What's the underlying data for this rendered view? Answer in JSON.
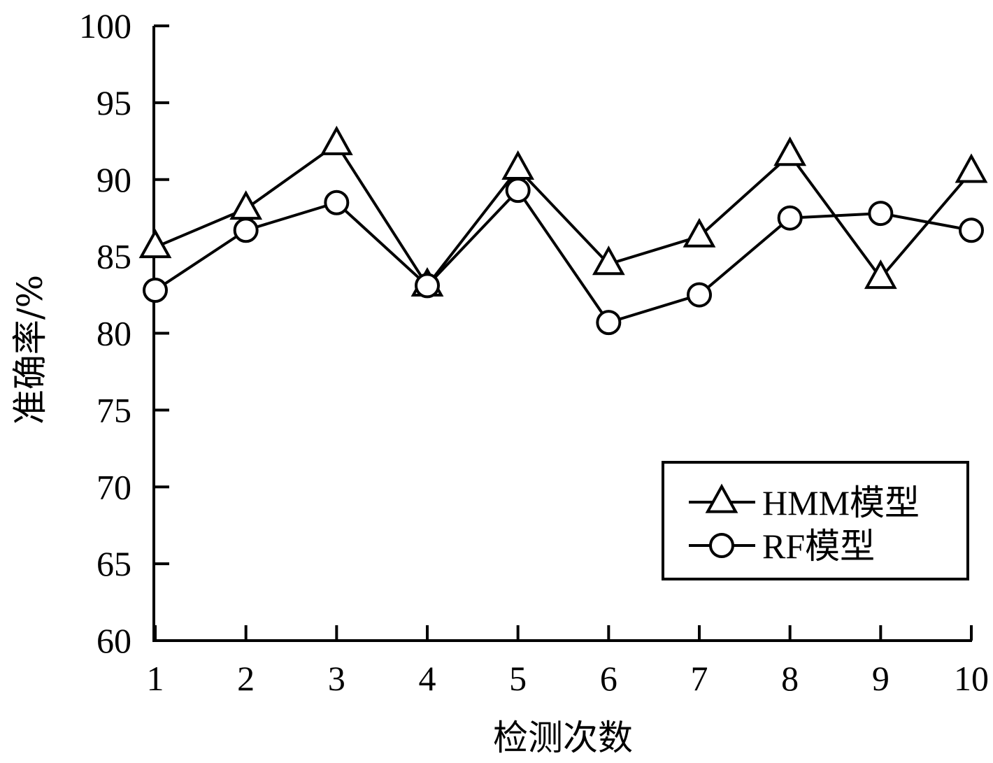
{
  "chart_data": {
    "type": "line",
    "title": "",
    "xlabel": "检测次数",
    "ylabel": "准确率/%",
    "categories": [
      "1",
      "2",
      "3",
      "4",
      "5",
      "6",
      "7",
      "8",
      "9",
      "10"
    ],
    "yticks": [
      "60",
      "65",
      "70",
      "75",
      "80",
      "85",
      "90",
      "95",
      "100"
    ],
    "ylim": [
      60,
      100
    ],
    "grid": false,
    "legend_position": "bottom-right",
    "series": [
      {
        "name": "HMM模型",
        "marker": "triangle",
        "values": [
          85.6,
          88.1,
          92.3,
          83.1,
          90.7,
          84.5,
          86.3,
          91.6,
          83.6,
          90.5
        ]
      },
      {
        "name": "RF模型",
        "marker": "circle",
        "values": [
          82.8,
          86.7,
          88.5,
          83.1,
          89.3,
          80.7,
          82.5,
          87.5,
          87.8,
          86.7
        ]
      }
    ],
    "colors": {
      "line": "#000000",
      "background": "#ffffff"
    }
  }
}
